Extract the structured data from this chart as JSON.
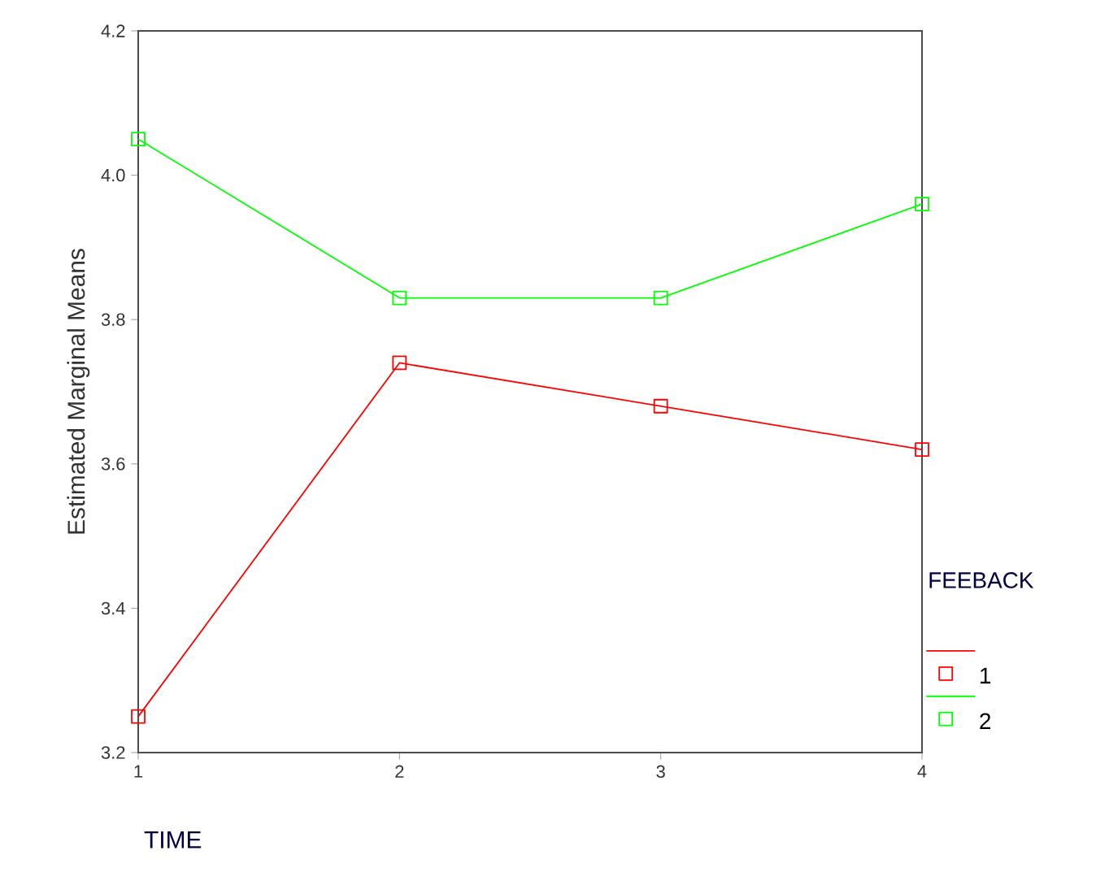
{
  "chart_data": {
    "type": "line",
    "xlabel": "TIME",
    "ylabel": "Estimated Marginal Means",
    "legend_title": "FEEBACK",
    "legend": "right",
    "marker": "square",
    "line_style": "solid",
    "grid": false,
    "x": [
      1,
      2,
      3,
      4
    ],
    "xlim": [
      1,
      4
    ],
    "xticks": [
      1,
      2,
      3,
      4
    ],
    "ylim": [
      3.2,
      4.2
    ],
    "yticks": [
      3.2,
      3.4,
      3.6,
      3.8,
      {
        "value": 4,
        "label": "4.0"
      },
      4.2
    ],
    "series": [
      {
        "name": "1",
        "color": "#ff0000",
        "values": [
          3.25,
          3.74,
          3.68,
          3.62
        ]
      },
      {
        "name": "2",
        "color": "#00ff00",
        "values": [
          4.05,
          3.83,
          3.83,
          3.96
        ]
      }
    ]
  }
}
